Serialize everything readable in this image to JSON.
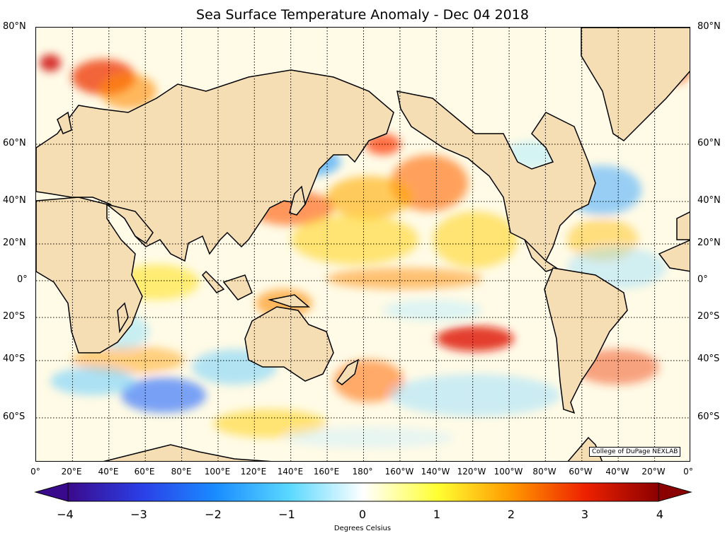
{
  "title": "Sea Surface Temperature Anomaly - Dec 04 2018",
  "credit": "College of DuPage NEXLAB",
  "colorbar": {
    "label": "Degrees Celsius",
    "ticks": [
      "−4",
      "−3",
      "−2",
      "−1",
      "0",
      "1",
      "2",
      "3",
      "4"
    ],
    "min": -4,
    "max": 4,
    "colors": [
      "#3a0a8c",
      "#2b3fe6",
      "#1a8cff",
      "#5ad8ff",
      "#ffffff",
      "#ffff33",
      "#ff9900",
      "#ee2200",
      "#8b0000"
    ]
  },
  "lat_labels": [
    "80°N",
    "60°N",
    "40°N",
    "20°N",
    "0°",
    "20°S",
    "40°S",
    "60°S"
  ],
  "lon_labels": [
    "0°",
    "20°E",
    "40°E",
    "60°E",
    "80°E",
    "100°E",
    "120°E",
    "140°E",
    "160°E",
    "180°",
    "160°W",
    "140°W",
    "120°W",
    "100°W",
    "80°W",
    "60°W",
    "40°W",
    "20°W",
    "0°"
  ],
  "land_color": "#f5deb3",
  "ocean_base_color": "#fffbe6"
}
